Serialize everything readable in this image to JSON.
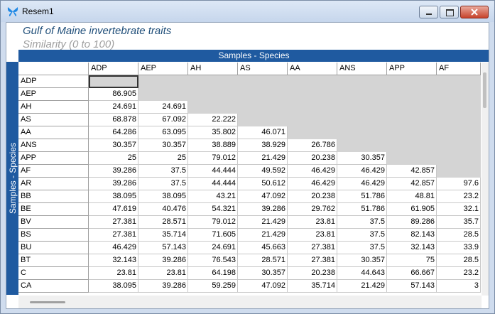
{
  "window": {
    "title": "Resem1"
  },
  "header": {
    "title": "Gulf of Maine invertebrate traits",
    "subtitle": "Similarity (0 to 100)"
  },
  "table": {
    "column_axis": "Samples - Species",
    "row_axis": "Samples - Species",
    "columns": [
      "ADP",
      "AEP",
      "AH",
      "AS",
      "AA",
      "ANS",
      "APP",
      "AF"
    ],
    "rows": [
      {
        "label": "ADP",
        "cells": []
      },
      {
        "label": "AEP",
        "cells": [
          "86.905"
        ]
      },
      {
        "label": "AH",
        "cells": [
          "24.691",
          "24.691"
        ]
      },
      {
        "label": "AS",
        "cells": [
          "68.878",
          "67.092",
          "22.222"
        ]
      },
      {
        "label": "AA",
        "cells": [
          "64.286",
          "63.095",
          "35.802",
          "46.071"
        ]
      },
      {
        "label": "ANS",
        "cells": [
          "30.357",
          "30.357",
          "38.889",
          "38.929",
          "26.786"
        ]
      },
      {
        "label": "APP",
        "cells": [
          "25",
          "25",
          "79.012",
          "21.429",
          "20.238",
          "30.357"
        ]
      },
      {
        "label": "AF",
        "cells": [
          "39.286",
          "37.5",
          "44.444",
          "49.592",
          "46.429",
          "46.429",
          "42.857"
        ]
      },
      {
        "label": "AR",
        "cells": [
          "39.286",
          "37.5",
          "44.444",
          "50.612",
          "46.429",
          "46.429",
          "42.857",
          "97.6"
        ]
      },
      {
        "label": "BB",
        "cells": [
          "38.095",
          "38.095",
          "43.21",
          "47.092",
          "20.238",
          "51.786",
          "48.81",
          "23.2"
        ]
      },
      {
        "label": "BE",
        "cells": [
          "47.619",
          "40.476",
          "54.321",
          "39.286",
          "29.762",
          "51.786",
          "61.905",
          "32.1"
        ]
      },
      {
        "label": "BV",
        "cells": [
          "27.381",
          "28.571",
          "79.012",
          "21.429",
          "23.81",
          "37.5",
          "89.286",
          "35.7"
        ]
      },
      {
        "label": "BS",
        "cells": [
          "27.381",
          "35.714",
          "71.605",
          "21.429",
          "23.81",
          "37.5",
          "82.143",
          "28.5"
        ]
      },
      {
        "label": "BU",
        "cells": [
          "46.429",
          "57.143",
          "24.691",
          "45.663",
          "27.381",
          "37.5",
          "32.143",
          "33.9"
        ]
      },
      {
        "label": "BT",
        "cells": [
          "32.143",
          "39.286",
          "76.543",
          "28.571",
          "27.381",
          "30.357",
          "75",
          "28.5"
        ]
      },
      {
        "label": "C",
        "cells": [
          "23.81",
          "23.81",
          "64.198",
          "30.357",
          "20.238",
          "44.643",
          "66.667",
          "23.2"
        ]
      },
      {
        "label": "CA",
        "cells": [
          "38.095",
          "39.286",
          "59.259",
          "47.092",
          "35.714",
          "21.429",
          "57.143",
          "3"
        ]
      }
    ]
  }
}
